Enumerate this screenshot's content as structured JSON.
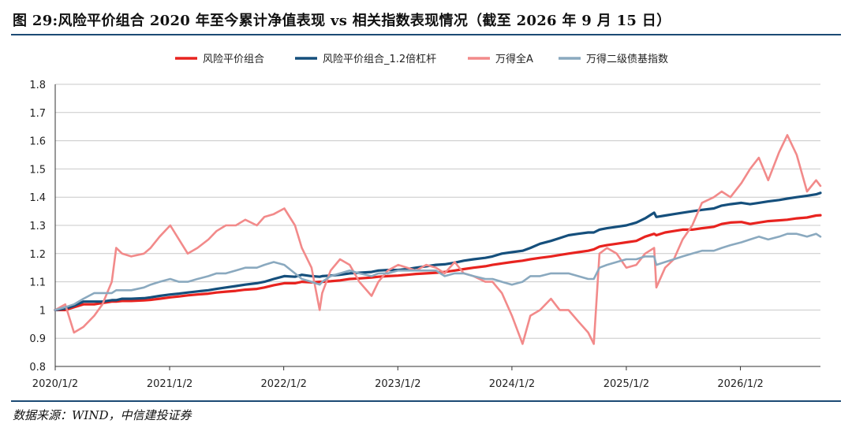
{
  "figure": {
    "title": "图 29:风险平价组合 2020 年至今累计净值表现 vs 相关指数表现情况（截至 2026 年 9 月 15 日）",
    "source": "数据来源：WIND，中信建投证券"
  },
  "colors": {
    "rule": "#1c4a74",
    "grid": "#c8c8c8"
  },
  "chart_data": {
    "type": "line",
    "title": "",
    "xlabel": "",
    "ylabel": "",
    "ylim": [
      0.8,
      1.8
    ],
    "yticks": [
      "0.8",
      "0.9",
      "1",
      "1.1",
      "1.2",
      "1.3",
      "1.4",
      "1.5",
      "1.6",
      "1.7",
      "1.8"
    ],
    "xticks": [
      "2020/1/2",
      "2021/1/2",
      "2022/1/2",
      "2023/1/2",
      "2024/1/2",
      "2025/1/2",
      "2026/1/2"
    ],
    "xlim": [
      "2020/1/2",
      "2026/9/15"
    ],
    "grid": "horizontal",
    "legend_position": "top-center",
    "x": [
      "2020/1/2",
      "2020/2/3",
      "2020/3/2",
      "2020/4/1",
      "2020/5/6",
      "2020/6/1",
      "2020/7/1",
      "2020/7/15",
      "2020/8/3",
      "2020/9/1",
      "2020/10/12",
      "2020/11/2",
      "2020/12/1",
      "2021/1/4",
      "2021/2/1",
      "2021/3/1",
      "2021/4/1",
      "2021/5/6",
      "2021/6/1",
      "2021/7/1",
      "2021/8/2",
      "2021/9/1",
      "2021/10/8",
      "2021/11/1",
      "2021/12/1",
      "2022/1/4",
      "2022/2/7",
      "2022/3/1",
      "2022/4/1",
      "2022/4/27",
      "2022/5/5",
      "2022/6/1",
      "2022/7/1",
      "2022/8/1",
      "2022/9/1",
      "2022/10/10",
      "2022/11/1",
      "2022/12/1",
      "2023/1/3",
      "2023/2/1",
      "2023/3/1",
      "2023/4/3",
      "2023/5/4",
      "2023/6/1",
      "2023/7/3",
      "2023/8/1",
      "2023/9/1",
      "2023/10/9",
      "2023/11/1",
      "2023/12/1",
      "2024/1/2",
      "2024/2/5",
      "2024/3/1",
      "2024/4/1",
      "2024/5/6",
      "2024/6/3",
      "2024/7/1",
      "2024/8/1",
      "2024/9/2",
      "2024/9/20",
      "2024/10/8",
      "2024/11/1",
      "2024/12/2",
      "2025/1/2",
      "2025/2/3",
      "2025/3/3",
      "2025/4/1",
      "2025/4/8",
      "2025/5/6",
      "2025/6/3",
      "2025/7/1",
      "2025/8/1",
      "2025/9/1",
      "2025/10/9",
      "2025/11/3",
      "2025/12/1",
      "2026/1/5",
      "2026/2/2",
      "2026/3/2",
      "2026/4/1",
      "2026/5/6",
      "2026/6/1",
      "2026/7/1",
      "2026/8/3",
      "2026/9/1",
      "2026/9/15"
    ],
    "series": [
      {
        "name": "风险平价组合",
        "color": "#e8231f",
        "width": 3.2,
        "values": [
          1.0,
          1.0,
          1.01,
          1.02,
          1.02,
          1.025,
          1.03,
          1.03,
          1.032,
          1.032,
          1.034,
          1.036,
          1.04,
          1.045,
          1.048,
          1.052,
          1.055,
          1.058,
          1.062,
          1.065,
          1.068,
          1.072,
          1.075,
          1.08,
          1.088,
          1.095,
          1.095,
          1.1,
          1.098,
          1.1,
          1.1,
          1.102,
          1.105,
          1.11,
          1.112,
          1.115,
          1.118,
          1.12,
          1.122,
          1.125,
          1.128,
          1.13,
          1.132,
          1.135,
          1.14,
          1.145,
          1.15,
          1.155,
          1.16,
          1.165,
          1.17,
          1.175,
          1.18,
          1.185,
          1.19,
          1.195,
          1.2,
          1.205,
          1.21,
          1.215,
          1.225,
          1.23,
          1.235,
          1.24,
          1.245,
          1.26,
          1.27,
          1.265,
          1.275,
          1.28,
          1.285,
          1.285,
          1.29,
          1.295,
          1.305,
          1.31,
          1.312,
          1.305,
          1.31,
          1.315,
          1.318,
          1.32,
          1.325,
          1.328,
          1.335,
          1.336
        ]
      },
      {
        "name": "风险平价组合_1.2倍杠杆",
        "color": "#154f7c",
        "width": 3.2,
        "values": [
          1.0,
          1.005,
          1.015,
          1.03,
          1.03,
          1.03,
          1.035,
          1.035,
          1.04,
          1.04,
          1.042,
          1.045,
          1.05,
          1.055,
          1.058,
          1.062,
          1.066,
          1.07,
          1.075,
          1.08,
          1.085,
          1.09,
          1.095,
          1.1,
          1.11,
          1.12,
          1.118,
          1.125,
          1.12,
          1.118,
          1.12,
          1.122,
          1.125,
          1.13,
          1.132,
          1.135,
          1.14,
          1.142,
          1.142,
          1.145,
          1.15,
          1.155,
          1.16,
          1.162,
          1.168,
          1.175,
          1.18,
          1.185,
          1.19,
          1.2,
          1.205,
          1.21,
          1.22,
          1.235,
          1.245,
          1.255,
          1.265,
          1.27,
          1.275,
          1.275,
          1.285,
          1.29,
          1.295,
          1.3,
          1.31,
          1.325,
          1.345,
          1.33,
          1.335,
          1.34,
          1.345,
          1.35,
          1.355,
          1.36,
          1.37,
          1.375,
          1.38,
          1.375,
          1.38,
          1.385,
          1.39,
          1.395,
          1.4,
          1.405,
          1.41,
          1.415
        ]
      },
      {
        "name": "万得全A",
        "color": "#f28a8a",
        "width": 2.6,
        "values": [
          1.0,
          1.02,
          0.92,
          0.94,
          0.98,
          1.02,
          1.1,
          1.22,
          1.2,
          1.19,
          1.2,
          1.22,
          1.26,
          1.3,
          1.25,
          1.2,
          1.22,
          1.25,
          1.28,
          1.3,
          1.3,
          1.32,
          1.3,
          1.33,
          1.34,
          1.36,
          1.3,
          1.22,
          1.15,
          1.0,
          1.06,
          1.14,
          1.18,
          1.16,
          1.1,
          1.05,
          1.1,
          1.14,
          1.16,
          1.15,
          1.14,
          1.16,
          1.15,
          1.13,
          1.17,
          1.13,
          1.12,
          1.1,
          1.1,
          1.06,
          0.98,
          0.88,
          0.98,
          1.0,
          1.04,
          1.0,
          1.0,
          0.96,
          0.92,
          0.88,
          1.2,
          1.22,
          1.2,
          1.15,
          1.16,
          1.2,
          1.22,
          1.08,
          1.15,
          1.18,
          1.25,
          1.3,
          1.38,
          1.4,
          1.42,
          1.4,
          1.45,
          1.5,
          1.54,
          1.46,
          1.56,
          1.62,
          1.55,
          1.42,
          1.46,
          1.44
        ]
      },
      {
        "name": "万得二级债基指数",
        "color": "#8aa9bf",
        "width": 2.6,
        "values": [
          1.0,
          1.01,
          1.02,
          1.04,
          1.06,
          1.06,
          1.06,
          1.07,
          1.07,
          1.07,
          1.08,
          1.09,
          1.1,
          1.11,
          1.1,
          1.1,
          1.11,
          1.12,
          1.13,
          1.13,
          1.14,
          1.15,
          1.15,
          1.16,
          1.17,
          1.16,
          1.13,
          1.11,
          1.1,
          1.09,
          1.1,
          1.12,
          1.13,
          1.14,
          1.13,
          1.12,
          1.13,
          1.13,
          1.14,
          1.14,
          1.14,
          1.14,
          1.14,
          1.12,
          1.13,
          1.13,
          1.12,
          1.11,
          1.11,
          1.1,
          1.09,
          1.1,
          1.12,
          1.12,
          1.13,
          1.13,
          1.13,
          1.12,
          1.11,
          1.11,
          1.15,
          1.16,
          1.17,
          1.18,
          1.18,
          1.19,
          1.19,
          1.16,
          1.17,
          1.18,
          1.19,
          1.2,
          1.21,
          1.21,
          1.22,
          1.23,
          1.24,
          1.25,
          1.26,
          1.25,
          1.26,
          1.27,
          1.27,
          1.26,
          1.27,
          1.26
        ]
      }
    ]
  }
}
